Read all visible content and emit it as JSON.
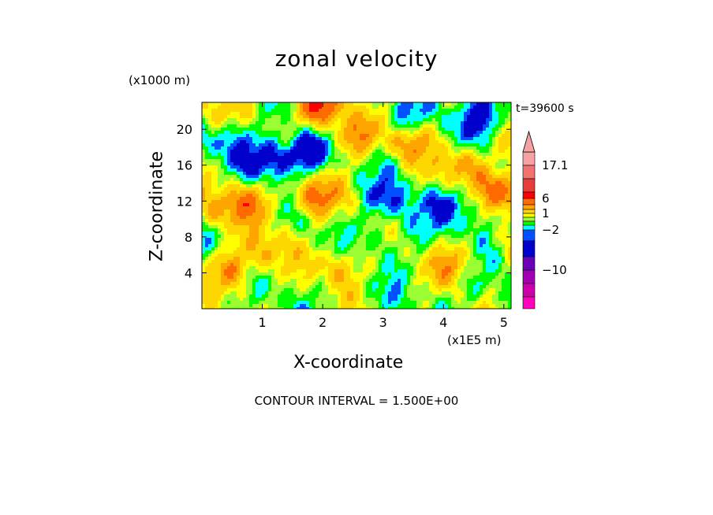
{
  "chart_data": {
    "type": "heatmap",
    "title": "zonal velocity",
    "xlabel": "X-coordinate",
    "ylabel": "Z-coordinate",
    "x_unit": "(x1E5 m)",
    "y_unit": "(x1000 m)",
    "time_label": "t=39600 s",
    "footer": "CONTOUR INTERVAL = 1.500E+00",
    "xlim": [
      0,
      5.12
    ],
    "ylim": [
      0,
      23
    ],
    "xticks": [
      1,
      2,
      3,
      4,
      5
    ],
    "yticks": [
      4,
      8,
      12,
      16,
      20
    ],
    "colorbar": {
      "labels": [
        {
          "value": 17.1,
          "text": "17.1"
        },
        {
          "value": 6,
          "text": "6"
        },
        {
          "value": 1,
          "text": "1"
        },
        {
          "value": -2,
          "text": "−2"
        },
        {
          "value": -10,
          "text": "−10"
        }
      ],
      "colors_top_to_bottom": [
        "#f6a2a2",
        "#f27272",
        "#e63c3c",
        "#ff0000",
        "#ff6a00",
        "#ffa500",
        "#ffd700",
        "#ffff00",
        "#9aff32",
        "#00ff00",
        "#00ffff",
        "#0050ff",
        "#0000cc",
        "#6a00b8",
        "#a100b2",
        "#cc00aa",
        "#ff00bb"
      ]
    },
    "contour_interval": 1.5,
    "value_range": [
      -20,
      18
    ],
    "features": [
      {
        "x": 1.7,
        "z": 17.5,
        "value": -6.0
      },
      {
        "x": 1.1,
        "z": 16.5,
        "value": -4.0
      },
      {
        "x": 0.45,
        "z": 18.8,
        "value": -2.5
      },
      {
        "x": 3.35,
        "z": 20.5,
        "value": -3.5
      },
      {
        "x": 3.1,
        "z": 12.0,
        "value": -3.0
      },
      {
        "x": 3.0,
        "z": 7.5,
        "value": -1.5
      },
      {
        "x": 4.15,
        "z": 11.5,
        "value": -3.5
      },
      {
        "x": 4.55,
        "z": 21.5,
        "value": -5.0
      },
      {
        "x": 4.6,
        "z": 10.5,
        "value": -1.2
      },
      {
        "x": 4.45,
        "z": 2.5,
        "value": -1.0
      },
      {
        "x": 1.95,
        "z": 22.5,
        "value": 7.5
      },
      {
        "x": 2.5,
        "z": 19.2,
        "value": 5.0
      },
      {
        "x": 1.85,
        "z": 12.5,
        "value": 5.5
      },
      {
        "x": 0.8,
        "z": 12.0,
        "value": 4.0
      },
      {
        "x": 3.45,
        "z": 19.0,
        "value": 5.5
      },
      {
        "x": 4.35,
        "z": 16.0,
        "value": 5.0
      },
      {
        "x": 5.0,
        "z": 13.0,
        "value": 7.0
      },
      {
        "x": 1.1,
        "z": 6.5,
        "value": 3.0
      },
      {
        "x": 2.3,
        "z": 4.8,
        "value": 3.5
      },
      {
        "x": 4.2,
        "z": 5.0,
        "value": 4.0
      },
      {
        "x": 0.55,
        "z": 4.5,
        "value": 4.5
      },
      {
        "x": 0.15,
        "z": 22.0,
        "value": 2.5
      },
      {
        "x": 0.25,
        "z": 11.0,
        "value": 3.5
      }
    ]
  }
}
